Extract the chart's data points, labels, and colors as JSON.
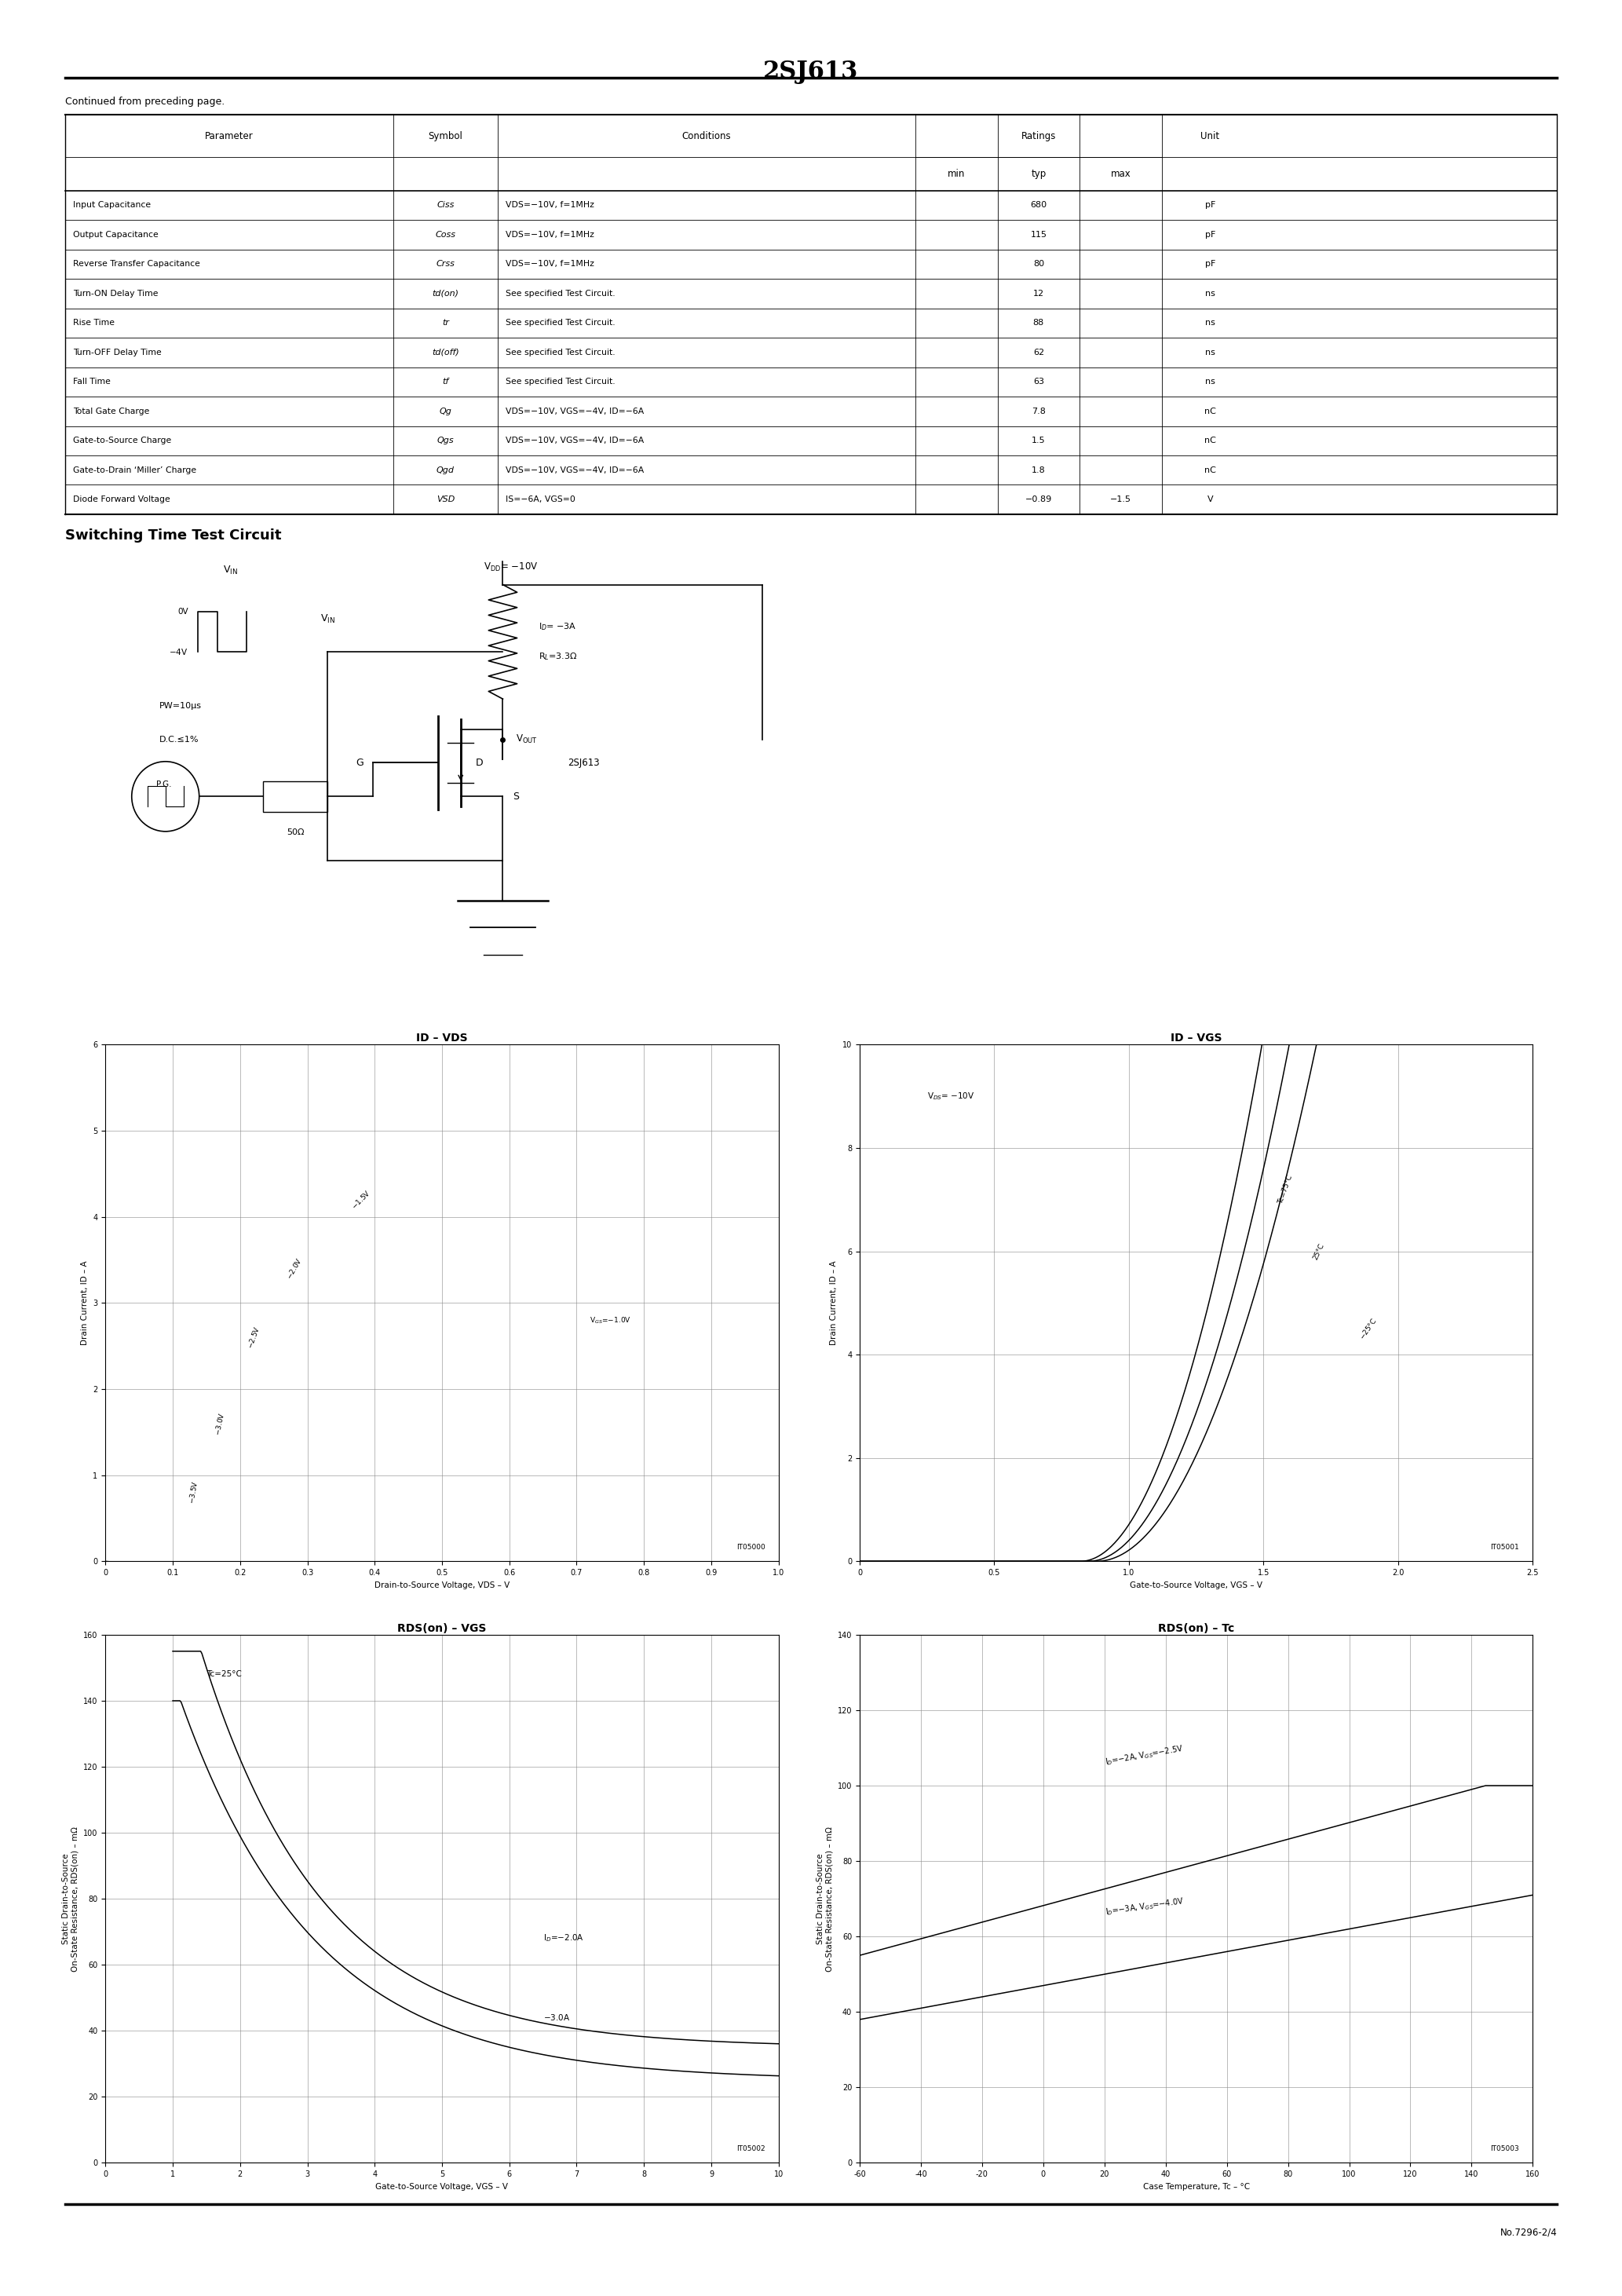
{
  "title": "2SJ613",
  "page_note": "Continued from preceding page.",
  "table_rows": [
    [
      "Input Capacitance",
      "Ciss",
      "VDS=−10V, f=1MHz",
      "",
      "680",
      "",
      "pF"
    ],
    [
      "Output Capacitance",
      "Coss",
      "VDS=−10V, f=1MHz",
      "",
      "115",
      "",
      "pF"
    ],
    [
      "Reverse Transfer Capacitance",
      "Crss",
      "VDS=−10V, f=1MHz",
      "",
      "80",
      "",
      "pF"
    ],
    [
      "Turn-ON Delay Time",
      "td(on)",
      "See specified Test Circuit.",
      "",
      "12",
      "",
      "ns"
    ],
    [
      "Rise Time",
      "tr",
      "See specified Test Circuit.",
      "",
      "88",
      "",
      "ns"
    ],
    [
      "Turn-OFF Delay Time",
      "td(off)",
      "See specified Test Circuit.",
      "",
      "62",
      "",
      "ns"
    ],
    [
      "Fall Time",
      "tf",
      "See specified Test Circuit.",
      "",
      "63",
      "",
      "ns"
    ],
    [
      "Total Gate Charge",
      "Qg",
      "VDS=−10V, VGS=−4V, ID=−6A",
      "",
      "7.8",
      "",
      "nC"
    ],
    [
      "Gate-to-Source Charge",
      "Qgs",
      "VDS=−10V, VGS=−4V, ID=−6A",
      "",
      "1.5",
      "",
      "nC"
    ],
    [
      "Gate-to-Drain ‘Miller’ Charge",
      "Qgd",
      "VDS=−10V, VGS=−4V, ID=−6A",
      "",
      "1.8",
      "",
      "nC"
    ],
    [
      "Diode Forward Voltage",
      "VSD",
      "IS=−6A, VGS=0",
      "",
      "−0.89",
      "−1.5",
      "V"
    ]
  ],
  "section_title": "Switching Time Test Circuit",
  "bottom_note": "No.7296-2/4",
  "graph1_title": "ID – VDS",
  "graph1_xlabel": "Drain-to-Source Voltage, VDS – V",
  "graph1_ylabel": "Drain Current, ID – A",
  "graph1_code": "IT05000",
  "graph2_title": "ID – VGS",
  "graph2_xlabel": "Gate-to-Source Voltage, VGS – V",
  "graph2_ylabel": "Drain Current, ID – A",
  "graph2_code": "IT05001",
  "graph3_title": "RDS(on) – VGS",
  "graph3_xlabel": "Gate-to-Source Voltage, VGS – V",
  "graph3_ylabel": "Static Drain-to-Source\nOn-State Resistance, RDS(on) – mΩ",
  "graph3_code": "IT05002",
  "graph4_title": "RDS(on) – Tc",
  "graph4_xlabel": "Case Temperature, Tc – °C",
  "graph4_ylabel": "Static Drain-to-Source\nOn-State Resistance, RDS(on) – mΩ",
  "graph4_code": "IT05003"
}
